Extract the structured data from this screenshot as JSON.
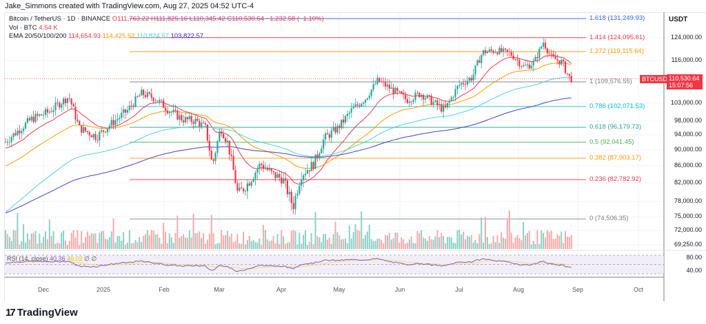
{
  "header": {
    "credit": "Jake_Simmons created with TradingView.com, Aug 27, 2025 04:52 UTC-4"
  },
  "legend": {
    "symbol": "Bitcoin / TetherUS · 1D · BINANCE",
    "open": "O111,763.22",
    "high": "H111,825.16",
    "low": "L110,345.42",
    "close": "C110,530.64",
    "change": "−1,232.58 (−1.10%)",
    "vol_label": "Vol · BTC",
    "vol_value": "4.54 K",
    "ema_label": "EMA 20/50/100/200",
    "ema20": "114,654.93",
    "ema50": "114,425.52",
    "ema100": "110,824.57",
    "ema200": "103,822.57"
  },
  "price_scale": {
    "currency": "USDT",
    "ticks": [
      "124,000.00",
      "116,000.00",
      "103,000.00",
      "98,000.00",
      "94,000.00",
      "90,000.00",
      "86,000.00",
      "82,000.00",
      "78,000.00",
      "75,000.00",
      "72,000.00",
      "69,250.00"
    ],
    "rsi_ticks": [
      "80.00",
      "40.00"
    ],
    "last_price": "110,530.64",
    "countdown": "15:07:56",
    "symbol_tag": "BTCUSDT"
  },
  "fib_levels": [
    {
      "ratio": "1.618",
      "price": "131,249.93",
      "label": "1.618 (131,249.93)",
      "color": "#2962ff"
    },
    {
      "ratio": "1.414",
      "price": "124,095.61",
      "label": "1.414 (124,095.61)",
      "color": "#f23645"
    },
    {
      "ratio": "1.272",
      "price": "119,115.64",
      "label": "1.272 (119,115.64)",
      "color": "#ff9800"
    },
    {
      "ratio": "1",
      "price": "109,576.55",
      "label": "1 (109,576.55)",
      "color": "#787b86"
    },
    {
      "ratio": "0.786",
      "price": "102,071.53",
      "label": "0.786 (102,071.53)",
      "color": "#00bcd4"
    },
    {
      "ratio": "0.618",
      "price": "96,179.73",
      "label": "0.618 (96,179.73)",
      "color": "#26a69a"
    },
    {
      "ratio": "0.5",
      "price": "92,041.45",
      "label": "0.5 (92,041.45)",
      "color": "#4caf50"
    },
    {
      "ratio": "0.382",
      "price": "87,903.17",
      "label": "0.382 (87,903.17)",
      "color": "#ff9800"
    },
    {
      "ratio": "0.236",
      "price": "82,782.92",
      "label": "0.236 (82,782.92)",
      "color": "#f23645"
    },
    {
      "ratio": "0",
      "price": "74,506.35",
      "label": "0 (74,506.35)",
      "color": "#787b86"
    }
  ],
  "time_axis": [
    "Dec",
    "2025",
    "Feb",
    "Mar",
    "Apr",
    "May",
    "Jun",
    "Jul",
    "Aug",
    "Sep",
    "Oct"
  ],
  "rsi": {
    "label": "RSI (14, close)",
    "value": "40.36",
    "ma_value": "46.02",
    "extra": "∅ ∅"
  },
  "branding": {
    "logo_mark": "17",
    "logo_text": "TradingView"
  },
  "colors": {
    "up": "#26a69a",
    "down": "#f23645",
    "ema20": "#f23645",
    "ema50": "#ff9800",
    "ema100": "#4dd0e1",
    "ema200": "#3f3fd6",
    "rsi": "#7e57c2",
    "rsi_ma": "#f5e15a"
  },
  "chart_data": {
    "type": "candlestick",
    "title": "Bitcoin / TetherUS · 1D · BINANCE",
    "xlabel": "",
    "ylabel": "USDT",
    "x_ticks": [
      "Dec",
      "2025",
      "Feb",
      "Mar",
      "Apr",
      "May",
      "Jun",
      "Jul",
      "Aug",
      "Sep",
      "Oct"
    ],
    "ylim": [
      66000,
      135000
    ],
    "grid": true,
    "approx_close_path": [
      {
        "x": "Nov 20",
        "close": 92000
      },
      {
        "x": "Dec 5",
        "close": 98000
      },
      {
        "x": "Dec 17",
        "close": 106000
      },
      {
        "x": "Dec 30",
        "close": 93000
      },
      {
        "x": "Jan 7",
        "close": 97000
      },
      {
        "x": "Jan 20",
        "close": 106000
      },
      {
        "x": "Jan 31",
        "close": 102000
      },
      {
        "x": "Feb 10",
        "close": 97000
      },
      {
        "x": "Feb 25",
        "close": 85000
      },
      {
        "x": "Mar 2",
        "close": 94000
      },
      {
        "x": "Mar 10",
        "close": 80000
      },
      {
        "x": "Mar 24",
        "close": 87000
      },
      {
        "x": "Apr 8",
        "close": 76000
      },
      {
        "x": "Apr 22",
        "close": 93000
      },
      {
        "x": "May 22",
        "close": 111000
      },
      {
        "x": "Jun 5",
        "close": 101000
      },
      {
        "x": "Jun 22",
        "close": 101000
      },
      {
        "x": "Jul 3",
        "close": 109000
      },
      {
        "x": "Jul 14",
        "close": 121000
      },
      {
        "x": "Aug 2",
        "close": 113000
      },
      {
        "x": "Aug 14",
        "close": 123500
      },
      {
        "x": "Aug 26",
        "close": 110530
      }
    ],
    "series": [
      {
        "name": "EMA 20",
        "last": 114654.93
      },
      {
        "name": "EMA 50",
        "last": 114425.52
      },
      {
        "name": "EMA 100",
        "last": 110824.57
      },
      {
        "name": "EMA 200",
        "last": 103822.57
      }
    ],
    "annotations": [
      "Fib 1.618 131,249.93",
      "Fib 1.414 124,095.61",
      "Fib 1.272 119,115.64",
      "Fib 1 109,576.55",
      "Fib 0.786 102,071.53",
      "Fib 0.618 96,179.73",
      "Fib 0.5 92,041.45",
      "Fib 0.382 87,903.17",
      "Fib 0.236 82,782.92",
      "Fib 0 74,506.35"
    ],
    "volume_last": "4.54 K",
    "rsi": {
      "period": 14,
      "value": 40.36,
      "ma": 46.02,
      "levels": [
        70,
        30
      ]
    }
  }
}
